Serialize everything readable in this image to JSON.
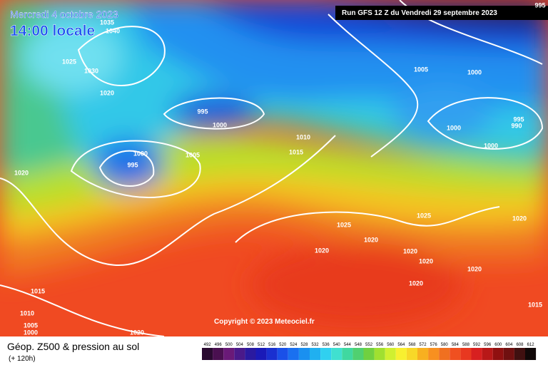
{
  "header": {
    "date": "Mercredi 4 octobre 2023",
    "time": "14:00 locale",
    "run": "Run GFS 12 Z du Vendredi 29 septembre 2023"
  },
  "footer": {
    "copyright": "Copyright © 2023 Meteociel.fr"
  },
  "legend": {
    "title": "Géop. Z500 & pression au sol",
    "subtitle": "(+ 120h)",
    "levels": [
      492,
      496,
      500,
      504,
      508,
      512,
      516,
      520,
      524,
      528,
      532,
      536,
      540,
      544,
      548,
      552,
      556,
      560,
      564,
      568,
      572,
      576,
      580,
      584,
      588,
      592,
      596,
      600,
      604,
      608,
      612
    ]
  },
  "isobar_labels": [
    "1035",
    "1040",
    "1025",
    "1030",
    "1020",
    "995",
    "1000",
    "1000",
    "995",
    "1005",
    "1020",
    "1010",
    "1015",
    "1005",
    "1000",
    "995",
    "990",
    "1000",
    "1000",
    "1025",
    "1025",
    "1020",
    "1020",
    "1020",
    "1020",
    "1020",
    "1020",
    "1020",
    "1015",
    "1015",
    "1010",
    "1005",
    "1000",
    "1020",
    "995"
  ]
}
